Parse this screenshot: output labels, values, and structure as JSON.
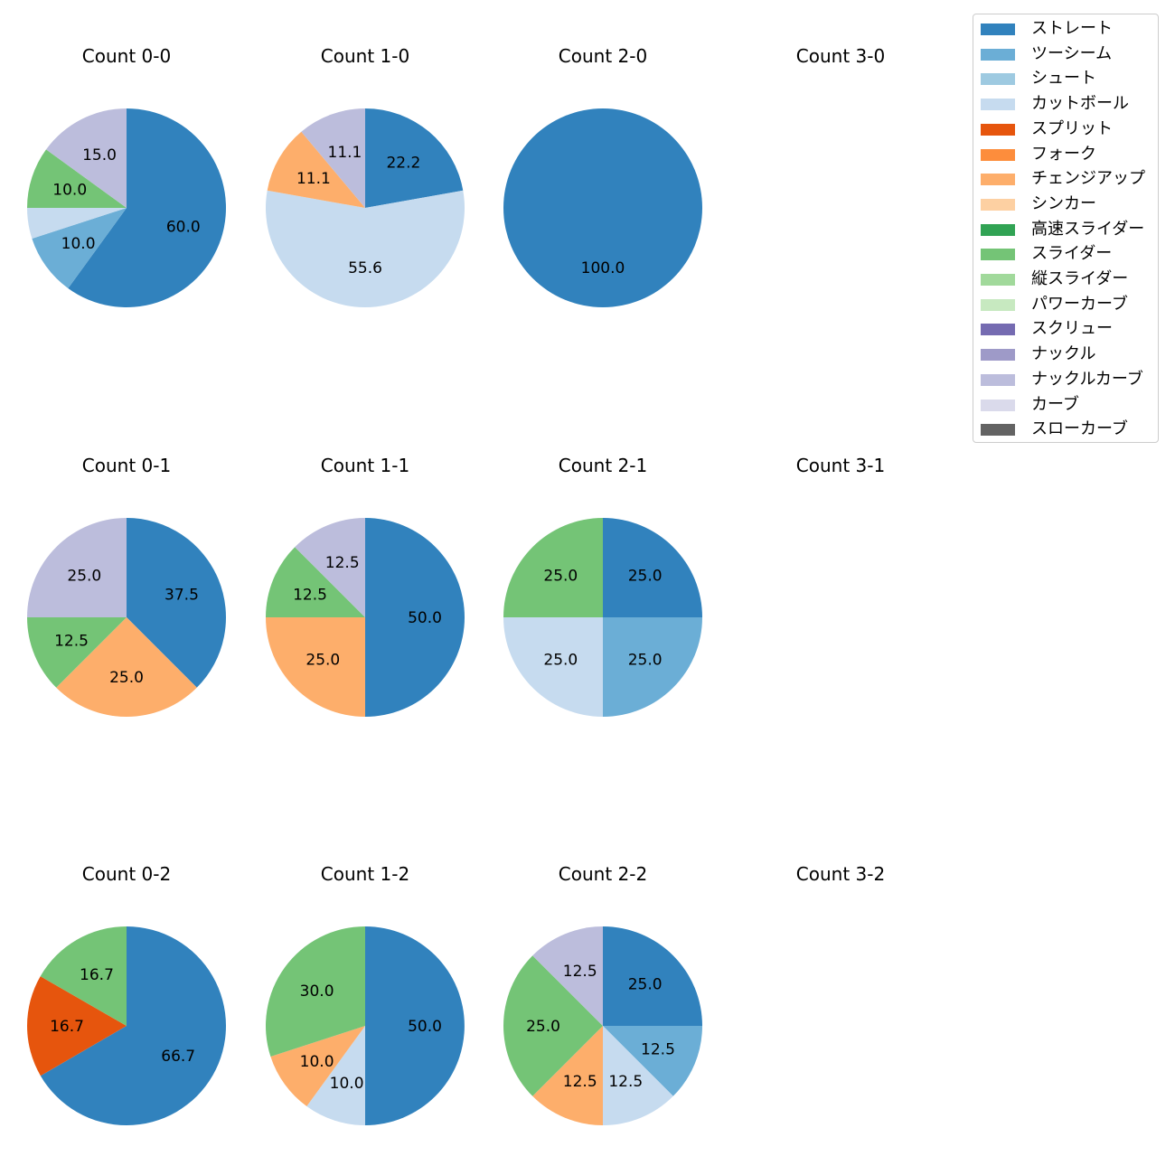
{
  "chart_data": {
    "type": "pie",
    "legend": {
      "position": "top-right",
      "entries": [
        {
          "name": "ストレート",
          "color": "#3182bd"
        },
        {
          "name": "ツーシーム",
          "color": "#6baed6"
        },
        {
          "name": "シュート",
          "color": "#9ecae1"
        },
        {
          "name": "カットボール",
          "color": "#c6dbef"
        },
        {
          "name": "スプリット",
          "color": "#e6550d"
        },
        {
          "name": "フォーク",
          "color": "#fd8d3c"
        },
        {
          "name": "チェンジアップ",
          "color": "#fdae6b"
        },
        {
          "name": "シンカー",
          "color": "#fdd0a2"
        },
        {
          "name": "高速スライダー",
          "color": "#31a354"
        },
        {
          "name": "スライダー",
          "color": "#74c476"
        },
        {
          "name": "縦スライダー",
          "color": "#a1d99b"
        },
        {
          "name": "パワーカーブ",
          "color": "#c7e9c0"
        },
        {
          "name": "スクリュー",
          "color": "#756bb1"
        },
        {
          "name": "ナックル",
          "color": "#9e9ac8"
        },
        {
          "name": "ナックルカーブ",
          "color": "#bcbddc"
        },
        {
          "name": "カーブ",
          "color": "#dadaeb"
        },
        {
          "name": "スローカーブ",
          "color": "#636363"
        }
      ]
    },
    "charts": [
      {
        "title": "Count 0-0",
        "slices": [
          {
            "name": "ストレート",
            "value": 60.0,
            "label": "60.0"
          },
          {
            "name": "ツーシーム",
            "value": 10.0,
            "label": "10.0"
          },
          {
            "name": "カットボール",
            "value": 5.0,
            "label": ""
          },
          {
            "name": "スライダー",
            "value": 10.0,
            "label": "10.0"
          },
          {
            "name": "ナックルカーブ",
            "value": 15.0,
            "label": "15.0"
          }
        ]
      },
      {
        "title": "Count 1-0",
        "slices": [
          {
            "name": "ストレート",
            "value": 22.2,
            "label": "22.2"
          },
          {
            "name": "カットボール",
            "value": 55.6,
            "label": "55.6"
          },
          {
            "name": "チェンジアップ",
            "value": 11.1,
            "label": "11.1"
          },
          {
            "name": "ナックルカーブ",
            "value": 11.1,
            "label": "11.1"
          }
        ]
      },
      {
        "title": "Count 2-0",
        "slices": [
          {
            "name": "ストレート",
            "value": 100.0,
            "label": "100.0"
          }
        ]
      },
      {
        "title": "Count 3-0",
        "slices": []
      },
      {
        "title": "Count 0-1",
        "slices": [
          {
            "name": "ストレート",
            "value": 37.5,
            "label": "37.5"
          },
          {
            "name": "チェンジアップ",
            "value": 25.0,
            "label": "25.0"
          },
          {
            "name": "スライダー",
            "value": 12.5,
            "label": "12.5"
          },
          {
            "name": "ナックルカーブ",
            "value": 25.0,
            "label": "25.0"
          }
        ]
      },
      {
        "title": "Count 1-1",
        "slices": [
          {
            "name": "ストレート",
            "value": 50.0,
            "label": "50.0"
          },
          {
            "name": "チェンジアップ",
            "value": 25.0,
            "label": "25.0"
          },
          {
            "name": "スライダー",
            "value": 12.5,
            "label": "12.5"
          },
          {
            "name": "ナックルカーブ",
            "value": 12.5,
            "label": "12.5"
          }
        ]
      },
      {
        "title": "Count 2-1",
        "slices": [
          {
            "name": "ストレート",
            "value": 25.0,
            "label": "25.0"
          },
          {
            "name": "ツーシーム",
            "value": 25.0,
            "label": "25.0"
          },
          {
            "name": "カットボール",
            "value": 25.0,
            "label": "25.0"
          },
          {
            "name": "スライダー",
            "value": 25.0,
            "label": "25.0"
          }
        ]
      },
      {
        "title": "Count 3-1",
        "slices": []
      },
      {
        "title": "Count 0-2",
        "slices": [
          {
            "name": "ストレート",
            "value": 66.7,
            "label": "66.7"
          },
          {
            "name": "スプリット",
            "value": 16.7,
            "label": "16.7"
          },
          {
            "name": "スライダー",
            "value": 16.7,
            "label": "16.7"
          }
        ]
      },
      {
        "title": "Count 1-2",
        "slices": [
          {
            "name": "ストレート",
            "value": 50.0,
            "label": "50.0"
          },
          {
            "name": "カットボール",
            "value": 10.0,
            "label": "10.0"
          },
          {
            "name": "チェンジアップ",
            "value": 10.0,
            "label": "10.0"
          },
          {
            "name": "スライダー",
            "value": 30.0,
            "label": "30.0"
          }
        ]
      },
      {
        "title": "Count 2-2",
        "slices": [
          {
            "name": "ストレート",
            "value": 25.0,
            "label": "25.0"
          },
          {
            "name": "ツーシーム",
            "value": 12.5,
            "label": "12.5"
          },
          {
            "name": "カットボール",
            "value": 12.5,
            "label": "12.5"
          },
          {
            "name": "チェンジアップ",
            "value": 12.5,
            "label": "12.5"
          },
          {
            "name": "スライダー",
            "value": 25.0,
            "label": "25.0"
          },
          {
            "name": "ナックルカーブ",
            "value": 12.5,
            "label": "12.5"
          }
        ]
      },
      {
        "title": "Count 3-2",
        "slices": []
      }
    ]
  }
}
